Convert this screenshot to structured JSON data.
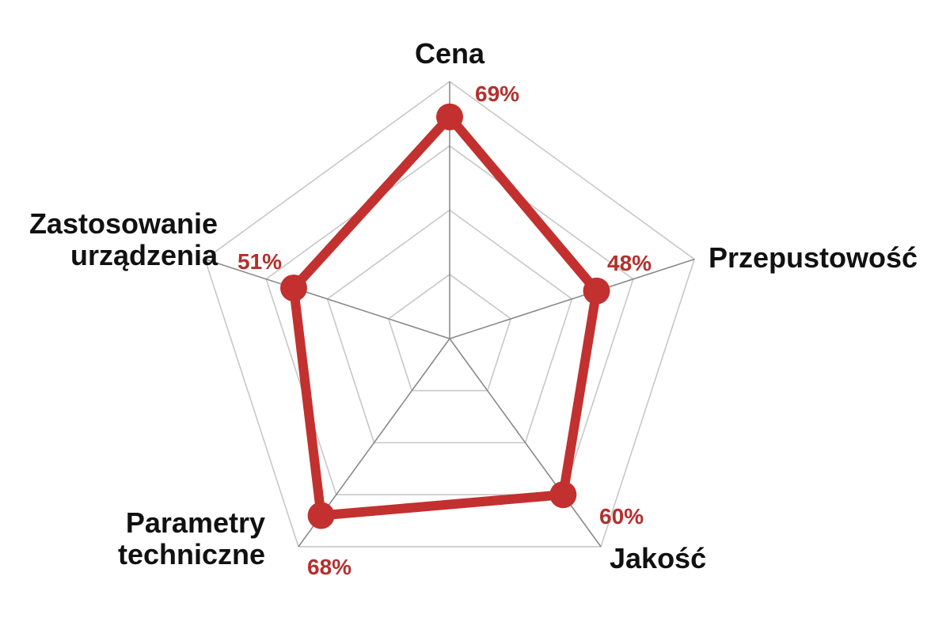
{
  "chart_data": {
    "type": "radar",
    "title": "",
    "axes": [
      {
        "label_lines": [
          "Cena"
        ],
        "value": 69,
        "value_label": "69%"
      },
      {
        "label_lines": [
          "Przepustowość"
        ],
        "value": 48,
        "value_label": "48%"
      },
      {
        "label_lines": [
          "Jakość"
        ],
        "value": 60,
        "value_label": "60%"
      },
      {
        "label_lines": [
          "Parametry",
          "techniczne"
        ],
        "value": 68,
        "value_label": "68%"
      },
      {
        "label_lines": [
          "Zastosowanie",
          "urządzenia"
        ],
        "value": 51,
        "value_label": "51%"
      }
    ],
    "rmin": 0,
    "rmax": 80,
    "rings": 4,
    "grid": true,
    "legend": "none"
  },
  "colors": {
    "series": "#c2312f",
    "value_label": "#b4302d",
    "grid": "#c8c8c8",
    "spoke": "#8a8a8a",
    "axis_label": "#111111"
  }
}
